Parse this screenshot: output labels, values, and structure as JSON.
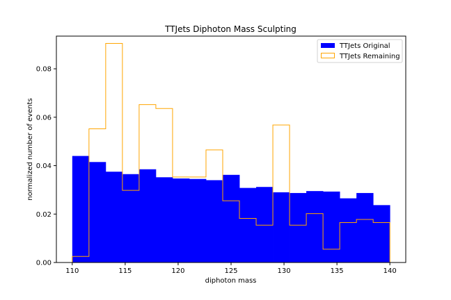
{
  "chart_data": {
    "type": "bar",
    "title": "TTJets Diphoton Mass Sculpting",
    "xlabel": "diphoton mass",
    "ylabel": "normalized number of events",
    "xlim": [
      108.5,
      141.5
    ],
    "ylim": [
      0,
      0.0935
    ],
    "x_ticks": [
      "110",
      "115",
      "120",
      "125",
      "130",
      "135",
      "140"
    ],
    "x_tick_values": [
      110,
      115,
      120,
      125,
      130,
      135,
      140
    ],
    "y_ticks": [
      "0.00",
      "0.02",
      "0.04",
      "0.06",
      "0.08"
    ],
    "y_tick_values": [
      0,
      0.02,
      0.04,
      0.06,
      0.08
    ],
    "bin_edges": [
      110,
      111.579,
      113.158,
      114.737,
      116.316,
      117.895,
      119.474,
      121.053,
      122.632,
      124.211,
      125.789,
      127.368,
      128.947,
      130.526,
      132.105,
      133.684,
      135.263,
      136.842,
      138.421,
      140
    ],
    "legend_position": "top-right",
    "grid": false,
    "series": [
      {
        "name": "TTJets Original",
        "style": "filled",
        "color": "#0000ff",
        "values": [
          0.044,
          0.0415,
          0.0375,
          0.0365,
          0.0385,
          0.0352,
          0.0347,
          0.0345,
          0.034,
          0.0362,
          0.0308,
          0.0312,
          0.029,
          0.0287,
          0.0295,
          0.0293,
          0.0265,
          0.0287,
          0.0237
        ]
      },
      {
        "name": "TTJets Remaining",
        "style": "step",
        "color": "#ffa500",
        "values": [
          0.0025,
          0.0552,
          0.0905,
          0.0298,
          0.0652,
          0.0636,
          0.0353,
          0.0353,
          0.0465,
          0.0255,
          0.0182,
          0.0154,
          0.0568,
          0.0154,
          0.0202,
          0.0055,
          0.0165,
          0.0178,
          0.0165
        ]
      }
    ]
  }
}
